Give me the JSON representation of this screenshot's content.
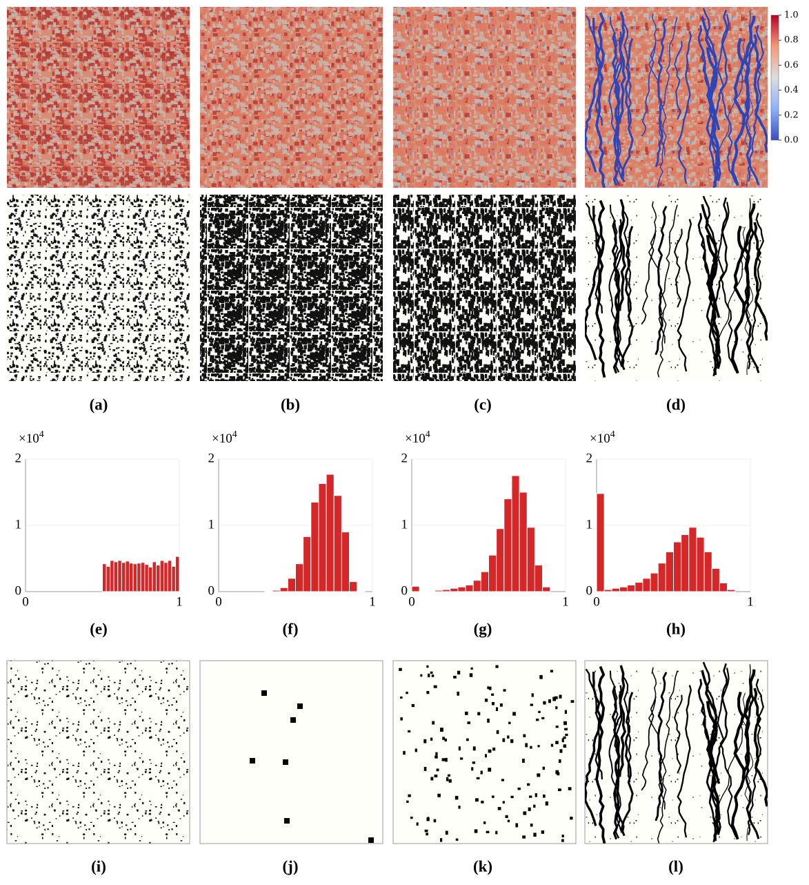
{
  "panel_labels": [
    "(a)",
    "(b)",
    "(c)",
    "(d)",
    "(e)",
    "(f)",
    "(g)",
    "(h)",
    "(i)",
    "(j)",
    "(k)",
    "(l)"
  ],
  "colorbar": {
    "lim": [
      0,
      1
    ],
    "ticks": [
      {
        "value": 1,
        "label": "1.0"
      },
      0.8,
      0.6,
      0.4,
      0.2,
      {
        "value": 0,
        "label": "0.0"
      }
    ]
  },
  "chart_data": [
    {
      "type": "histogram",
      "multiplier": {
        "base": "×10",
        "exponent": "4"
      },
      "color": "#d62728",
      "bins": [
        0.5,
        0.525,
        0.55,
        0.575,
        0.6,
        0.625,
        0.65,
        0.675,
        0.7,
        0.725,
        0.75,
        0.775,
        0.8,
        0.825,
        0.85,
        0.875,
        0.9,
        0.925,
        0.95,
        0.975,
        1.0
      ],
      "values": [
        0.42,
        0.38,
        0.47,
        0.45,
        0.47,
        0.44,
        0.46,
        0.43,
        0.42,
        0.43,
        0.44,
        0.41,
        0.37,
        0.45,
        0.4,
        0.47,
        0.44,
        0.47,
        0.38,
        0.53
      ],
      "xlim": [
        0,
        1
      ],
      "ylim": [
        0,
        2
      ],
      "xticks": [
        0,
        1
      ],
      "yticks": [
        0,
        1,
        2
      ],
      "grid": true
    },
    {
      "type": "histogram",
      "multiplier": {
        "base": "×10",
        "exponent": "4"
      },
      "color": "#d62728",
      "bins": [
        0,
        0.05,
        0.1,
        0.15,
        0.2,
        0.25,
        0.3,
        0.35,
        0.4,
        0.45,
        0.5,
        0.55,
        0.6,
        0.65,
        0.7,
        0.75,
        0.8,
        0.85,
        0.9,
        0.95,
        1.0
      ],
      "values": [
        0,
        0,
        0,
        0,
        0,
        0,
        0.01,
        0.02,
        0.06,
        0.2,
        0.42,
        0.83,
        1.35,
        1.63,
        1.77,
        1.45,
        0.9,
        0.15,
        0.01,
        0
      ],
      "xlim": [
        0,
        1
      ],
      "ylim": [
        0,
        2
      ],
      "xticks": [
        0,
        1
      ],
      "yticks": [
        0,
        1,
        2
      ],
      "grid": true
    },
    {
      "type": "histogram",
      "multiplier": {
        "base": "×10",
        "exponent": "4"
      },
      "color": "#d62728",
      "bins": [
        0,
        0.05,
        0.1,
        0.15,
        0.2,
        0.25,
        0.3,
        0.35,
        0.4,
        0.45,
        0.5,
        0.55,
        0.6,
        0.65,
        0.7,
        0.75,
        0.8,
        0.85,
        0.9,
        0.95,
        1.0
      ],
      "values": [
        0.08,
        0.01,
        0.01,
        0.02,
        0.03,
        0.05,
        0.07,
        0.1,
        0.17,
        0.3,
        0.55,
        0.95,
        1.4,
        1.75,
        1.5,
        0.97,
        0.4,
        0.07,
        0,
        0
      ],
      "xlim": [
        0,
        1
      ],
      "ylim": [
        0,
        2
      ],
      "xticks": [
        0,
        1
      ],
      "yticks": [
        0,
        1,
        2
      ],
      "grid": true
    },
    {
      "type": "histogram",
      "multiplier": {
        "base": "×10",
        "exponent": "4"
      },
      "color": "#d62728",
      "bins": [
        0,
        0.05,
        0.1,
        0.15,
        0.2,
        0.25,
        0.3,
        0.35,
        0.4,
        0.45,
        0.5,
        0.55,
        0.6,
        0.65,
        0.7,
        0.75,
        0.8,
        0.85,
        0.9,
        0.95,
        1.0
      ],
      "values": [
        1.48,
        0.03,
        0.05,
        0.07,
        0.1,
        0.14,
        0.2,
        0.28,
        0.43,
        0.6,
        0.75,
        0.86,
        0.97,
        0.82,
        0.6,
        0.35,
        0.13,
        0.03,
        0,
        0
      ],
      "xlim": [
        0,
        1
      ],
      "ylim": [
        0,
        2
      ],
      "xticks": [
        0,
        1
      ],
      "yticks": [
        0,
        1,
        2
      ],
      "grid": true
    }
  ]
}
